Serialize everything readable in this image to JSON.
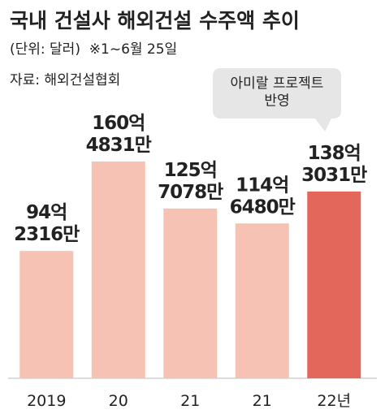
{
  "chart_data": {
    "type": "bar",
    "title": "국내 건설사 해외건설 수주액 추이",
    "subtitle": "(단위: 달러)  ※1~6월 25일",
    "source": "자료: 해외건설협회",
    "annotation": "아미랄 프로젝트\n반영",
    "categories": [
      "2019",
      "20",
      "21",
      "21",
      "22년"
    ],
    "values": [
      942316,
      1604831,
      1257078,
      1146480,
      1383031
    ],
    "value_labels": [
      "94억\n2316만",
      "160억\n4831만",
      "125억\n7078만",
      "114억\n6480만",
      "138억\n3031만"
    ],
    "colors": [
      "#f5c2b3",
      "#f5c2b3",
      "#f5c2b3",
      "#f5c2b3",
      "#e3675a"
    ]
  }
}
